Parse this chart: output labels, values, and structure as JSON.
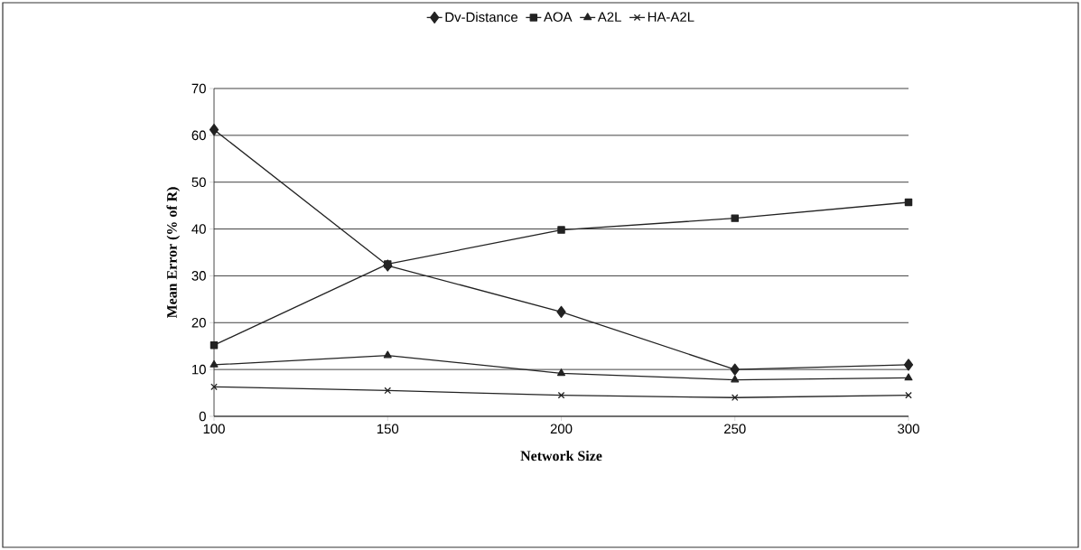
{
  "chart_data": {
    "type": "line",
    "xlabel": "Network Size",
    "ylabel": "Mean Error (% of R)",
    "x": [
      100,
      150,
      200,
      250,
      300
    ],
    "xlim": [
      100,
      300
    ],
    "xticks": [
      100,
      150,
      200,
      250,
      300
    ],
    "ylim": [
      0,
      70
    ],
    "yticks": [
      0,
      10,
      20,
      30,
      40,
      50,
      60,
      70
    ],
    "grid": "y",
    "legend": "top",
    "line_style": "solid",
    "series": [
      {
        "name": "Dv-Distance",
        "color": "#222222",
        "marker": "diamond",
        "values": [
          61.2,
          32.2,
          22.3,
          10,
          11
        ]
      },
      {
        "name": "AOA",
        "color": "#222222",
        "marker": "square",
        "values": [
          15.2,
          32.5,
          39.8,
          42.3,
          45.7
        ]
      },
      {
        "name": "A2L",
        "color": "#222222",
        "marker": "triangle",
        "values": [
          11,
          13,
          9.2,
          7.8,
          8.2
        ]
      },
      {
        "name": "HA-A2L",
        "color": "#222222",
        "marker": "cross",
        "values": [
          6.3,
          5.5,
          4.5,
          4,
          4.5
        ]
      }
    ]
  }
}
